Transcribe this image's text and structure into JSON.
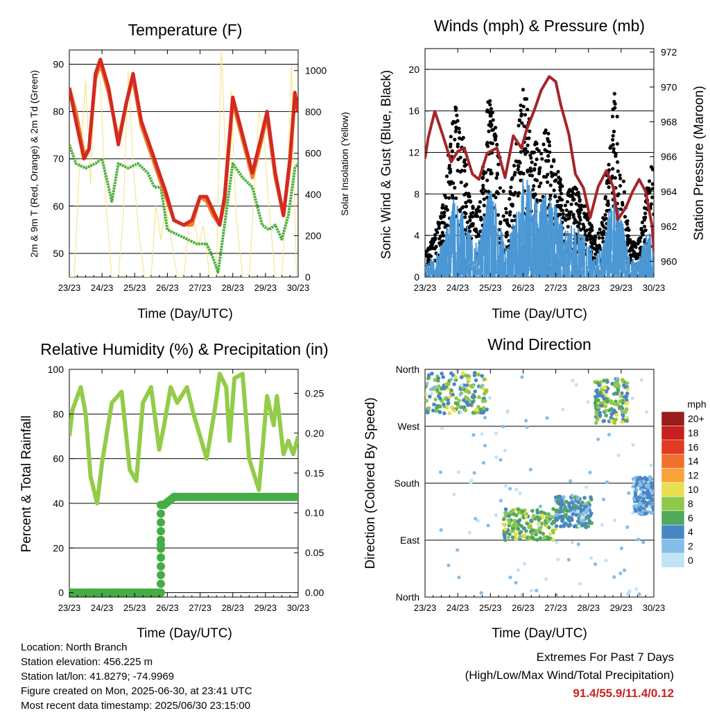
{
  "colors": {
    "temp2m": "#d42a20",
    "temp9m": "#f07f2a",
    "dewpoint": "#4aae3c",
    "solar": "#f7e27a",
    "gust": "#000000",
    "wind": "#4b97d4",
    "pressure": "#a5252a",
    "rh": "#92cc48",
    "rain": "#45ad45"
  },
  "footer": {
    "location": "Location: North Branch",
    "elevation": "Station elevation: 456.225 m",
    "latlon": "Station lat/lon: 41.8279; -74.9969",
    "created": "Figure created on Mon, 2025-06-30, at 23:41 UTC",
    "recent": "Most recent data timestamp: 2025/06/30 23:15:00"
  },
  "extremes": {
    "title": "Extremes For Past 7 Days",
    "subtitle": "(High/Low/Max Wind/Total Precipitation)",
    "values": "91.4/55.9/11.4/0.12"
  },
  "chart_data": [
    {
      "type": "line",
      "title": "Temperature (F)",
      "xlabel": "Time (Day/UTC)",
      "ylabel": "2m & 9m T (Red, Orange) & 2m Td (Green)",
      "y2label": "Solar Insolation (Yellow)",
      "xticks": [
        "23/23",
        "24/23",
        "25/23",
        "26/23",
        "27/23",
        "28/23",
        "29/23",
        "30/23"
      ],
      "xlim": [
        0,
        7
      ],
      "ylim": [
        45,
        93
      ],
      "yticks": [
        50,
        60,
        70,
        80,
        90
      ],
      "y2lim": [
        0,
        1100
      ],
      "y2ticks": [
        0,
        200,
        400,
        600,
        800,
        1000
      ],
      "grid": true,
      "series": [
        {
          "axis": "left",
          "color_key": "temp2m",
          "x": [
            0,
            0.2,
            0.45,
            0.6,
            0.8,
            0.95,
            1.2,
            1.5,
            1.75,
            1.95,
            2.2,
            2.5,
            2.8,
            2.95,
            3.2,
            3.5,
            3.75,
            4.0,
            4.2,
            4.4,
            4.6,
            4.75,
            5.0,
            5.3,
            5.6,
            5.85,
            6.05,
            6.3,
            6.55,
            6.75,
            6.9,
            7.0
          ],
          "y": [
            85,
            78,
            70,
            72,
            88,
            91,
            85,
            73,
            82,
            88,
            78,
            72,
            66,
            63,
            57,
            56,
            57,
            62,
            62,
            59,
            56,
            62,
            83,
            75,
            67,
            74,
            80,
            67,
            58,
            70,
            84,
            80
          ]
        },
        {
          "axis": "left",
          "color_key": "temp9m",
          "x": [
            0,
            0.2,
            0.45,
            0.6,
            0.8,
            0.95,
            1.2,
            1.5,
            1.75,
            1.95,
            2.2,
            2.5,
            2.8,
            2.95,
            3.2,
            3.5,
            3.75,
            4.0,
            4.2,
            4.4,
            4.6,
            4.75,
            5.0,
            5.3,
            5.6,
            5.85,
            6.05,
            6.3,
            6.55,
            6.75,
            6.9,
            7.0
          ],
          "y": [
            85,
            80,
            71,
            72,
            87,
            90,
            84,
            74,
            82,
            87,
            77,
            71,
            65,
            62,
            57,
            56,
            56,
            62,
            61,
            58,
            56,
            61,
            82,
            74,
            66,
            73,
            79,
            66,
            58,
            69,
            83,
            80
          ]
        },
        {
          "axis": "left",
          "color_key": "dewpoint",
          "x": [
            0,
            0.2,
            0.5,
            0.8,
            1.0,
            1.3,
            1.5,
            1.8,
            2.1,
            2.4,
            2.6,
            2.8,
            3.0,
            3.3,
            3.6,
            3.9,
            4.2,
            4.4,
            4.55,
            4.75,
            5.0,
            5.3,
            5.6,
            5.9,
            6.1,
            6.3,
            6.5,
            6.7,
            6.9,
            7.0
          ],
          "y": [
            73,
            69,
            68,
            69,
            70,
            61,
            69,
            68,
            69,
            67,
            64,
            64,
            55,
            54,
            53,
            52,
            52,
            49,
            46,
            56,
            69,
            66,
            64,
            56,
            55,
            56,
            53,
            58,
            68,
            69
          ]
        },
        {
          "axis": "right",
          "color_key": "solar",
          "x": [
            0,
            0.15,
            0.3,
            0.5,
            0.65,
            0.8,
            0.95,
            1.1,
            1.3,
            1.5,
            1.65,
            1.8,
            1.95,
            2.1,
            2.3,
            2.5,
            2.65,
            2.8,
            2.95,
            3.1,
            3.3,
            3.5,
            3.65,
            3.8,
            3.95,
            4.1,
            4.3,
            4.5,
            4.65,
            4.8,
            4.95,
            5.1,
            5.3,
            5.5,
            5.65,
            5.8,
            5.95,
            6.1,
            6.3,
            6.5,
            6.65,
            6.8,
            6.95,
            7.0
          ],
          "y": [
            0,
            0,
            500,
            950,
            450,
            1000,
            950,
            400,
            0,
            0,
            300,
            1000,
            550,
            250,
            0,
            0,
            350,
            180,
            350,
            200,
            0,
            0,
            250,
            300,
            150,
            250,
            0,
            0,
            1100,
            500,
            900,
            300,
            0,
            0,
            400,
            800,
            700,
            350,
            0,
            0,
            400,
            1020,
            0,
            0
          ]
        }
      ]
    },
    {
      "type": "scatter",
      "title": "Winds (mph) & Pressure (mb)",
      "xlabel": "Time (Day/UTC)",
      "ylabel": "Sonic Wind & Gust (Blue, Black)",
      "y2label": "Station Pressure (Maroon)",
      "xticks": [
        "23/23",
        "24/23",
        "25/23",
        "26/23",
        "27/23",
        "28/23",
        "29/23",
        "30/23"
      ],
      "xlim": [
        0,
        7
      ],
      "ylim": [
        0,
        22
      ],
      "yticks": [
        0,
        4,
        8,
        12,
        16,
        20
      ],
      "y2lim": [
        959.1,
        972.2
      ],
      "y2ticks": [
        960,
        962,
        964,
        966,
        968,
        970,
        972
      ],
      "grid": true,
      "gust_envelope": {
        "x": [
          0,
          0.3,
          0.6,
          0.9,
          1.2,
          1.5,
          1.7,
          1.95,
          2.2,
          2.5,
          2.75,
          3.0,
          3.2,
          3.5,
          3.7,
          4.0,
          4.3,
          4.6,
          4.9,
          5.2,
          5.4,
          5.6,
          5.8,
          6.0,
          6.25,
          6.5,
          6.75,
          7.0
        ],
        "y": [
          3,
          4,
          8,
          18,
          13,
          6,
          8,
          18,
          14,
          6,
          12,
          19,
          16,
          12,
          15,
          11,
          8,
          9,
          7,
          4,
          5,
          11,
          18,
          12,
          4,
          3,
          8,
          12
        ]
      },
      "wind_envelope": {
        "x": [
          0,
          0.3,
          0.6,
          0.9,
          1.2,
          1.5,
          1.7,
          1.95,
          2.2,
          2.5,
          2.75,
          3.0,
          3.2,
          3.5,
          3.7,
          4.0,
          4.3,
          4.6,
          4.9,
          5.2,
          5.4,
          5.6,
          5.8,
          6.0,
          6.25,
          6.5,
          6.75,
          7.0
        ],
        "y": [
          1.5,
          2,
          4,
          8,
          6,
          3,
          4,
          9,
          7,
          3,
          6,
          10,
          9,
          7,
          8,
          7,
          5,
          5,
          4,
          2,
          3,
          6,
          9,
          6,
          2,
          1.5,
          4,
          6
        ]
      },
      "pressure": {
        "x": [
          0,
          0.1,
          0.3,
          0.55,
          0.8,
          1.0,
          1.2,
          1.45,
          1.65,
          1.9,
          2.2,
          2.45,
          2.7,
          2.95,
          3.1,
          3.35,
          3.55,
          3.8,
          4.0,
          4.15,
          4.4,
          4.6,
          4.85,
          5.05,
          5.3,
          5.55,
          5.75,
          5.9,
          6.15,
          6.35,
          6.55,
          6.75,
          6.95,
          7.0
        ],
        "y": [
          965.9,
          967.1,
          968.6,
          967.2,
          965.7,
          966.3,
          966.5,
          965.0,
          964.7,
          966.2,
          966.5,
          964.8,
          967.2,
          966.5,
          967.5,
          968.7,
          969.8,
          970.6,
          970.3,
          969.0,
          967.3,
          965.0,
          964.2,
          962.5,
          964.3,
          965.2,
          964.3,
          962.4,
          963.1,
          964.0,
          964.7,
          964.0,
          962.0,
          960.5
        ]
      }
    },
    {
      "type": "line",
      "title": "Relative Humidity (%) & Precipitation (in)",
      "xlabel": "Time (Day/UTC)",
      "ylabel": "Percent & Total Rainfall",
      "xticks": [
        "23/23",
        "24/23",
        "25/23",
        "26/23",
        "27/23",
        "28/23",
        "29/23",
        "30/23"
      ],
      "xlim": [
        0,
        7
      ],
      "ylim": [
        -2,
        100
      ],
      "yticks": [
        0,
        20,
        40,
        60,
        80,
        100
      ],
      "y2lim": [
        -0.0056,
        0.28
      ],
      "y2ticks": [
        0.0,
        0.05,
        0.1,
        0.15,
        0.2,
        0.25
      ],
      "y2ticklabels": [
        "0.00",
        "0.05",
        "0.10",
        "0.15",
        "0.20",
        "0.25"
      ],
      "grid": true,
      "series": [
        {
          "axis": "left",
          "color_key": "rh",
          "x": [
            0,
            0.1,
            0.35,
            0.5,
            0.65,
            0.85,
            1.0,
            1.3,
            1.6,
            1.85,
            2.05,
            2.25,
            2.5,
            2.75,
            2.9,
            3.1,
            3.3,
            3.6,
            3.8,
            4.0,
            4.2,
            4.45,
            4.6,
            4.8,
            4.9,
            5.05,
            5.3,
            5.5,
            5.8,
            6.05,
            6.25,
            6.35,
            6.55,
            6.7,
            6.85,
            7.0
          ],
          "y": [
            70,
            82,
            92,
            80,
            52,
            40,
            58,
            85,
            90,
            55,
            50,
            85,
            92,
            64,
            75,
            92,
            85,
            92,
            80,
            70,
            60,
            82,
            98,
            92,
            68,
            96,
            98,
            60,
            46,
            88,
            75,
            88,
            62,
            68,
            62,
            70
          ]
        },
        {
          "axis": "right",
          "color_key": "rain",
          "x": [
            0,
            2.78,
            2.8,
            2.82,
            2.9,
            3.05,
            3.2,
            7.0
          ],
          "y": [
            0,
            0,
            0.06,
            0.11,
            0.11,
            0.115,
            0.12,
            0.12
          ]
        }
      ]
    },
    {
      "type": "scatter",
      "title": "Wind Direction",
      "xlabel": "Time (Day/UTC)",
      "ylabel": "Direction (Colored By Speed)",
      "xticks": [
        "23/23",
        "24/23",
        "25/23",
        "26/23",
        "27/23",
        "28/23",
        "29/23",
        "30/23"
      ],
      "xlim": [
        0,
        7
      ],
      "ylim": [
        0,
        360
      ],
      "yticks": [
        0,
        90,
        180,
        270,
        360
      ],
      "yticklabels": [
        "North",
        "East",
        "South",
        "West",
        "North"
      ],
      "grid": true,
      "colorbar": {
        "title": "mph",
        "labels": [
          "20+",
          "18",
          "16",
          "14",
          "12",
          "10",
          "8",
          "6",
          "4",
          "2",
          "0"
        ],
        "colors": [
          "#9a1c1c",
          "#c81f1f",
          "#e13b25",
          "#f2702b",
          "#f9a23a",
          "#e8df50",
          "#90c849",
          "#52a85c",
          "#4a86c4",
          "#85bde8",
          "#c1e3f6"
        ]
      },
      "clusters": [
        {
          "x": [
            0.0,
            1.9
          ],
          "y": [
            290,
            355
          ],
          "speed": [
            3,
            10
          ]
        },
        {
          "x": [
            2.4,
            4.0
          ],
          "y": [
            90,
            140
          ],
          "speed": [
            4,
            10
          ]
        },
        {
          "x": [
            4.0,
            5.1
          ],
          "y": [
            110,
            160
          ],
          "speed": [
            2,
            6
          ]
        },
        {
          "x": [
            5.2,
            6.2
          ],
          "y": [
            275,
            345
          ],
          "speed": [
            3,
            10
          ]
        },
        {
          "x": [
            6.4,
            7.0
          ],
          "y": [
            130,
            190
          ],
          "speed": [
            2,
            5
          ]
        }
      ]
    }
  ]
}
